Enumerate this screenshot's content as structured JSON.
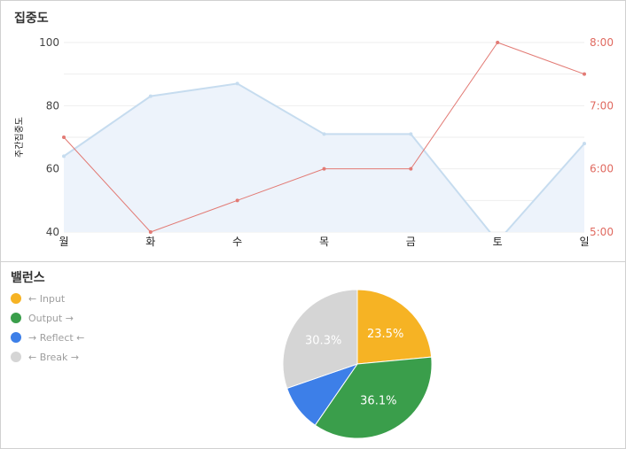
{
  "top_panel": {
    "title": "집중도"
  },
  "bottom_panel": {
    "title": "밸런스"
  },
  "colors": {
    "area_line": "#c6dcef",
    "area_fill": "#edf3fb",
    "time_line": "#e27a74",
    "left_axis_text": "#444444",
    "right_axis_text": "#e06a60",
    "grid": "#eeeeee"
  },
  "chart_data": [
    {
      "type": "area",
      "title": "집중도",
      "ylabel": "주간집중도",
      "y2label": "",
      "categories": [
        "월",
        "화",
        "수",
        "목",
        "금",
        "토",
        "일"
      ],
      "ylim": [
        40,
        100
      ],
      "yticks": [
        "40",
        "60",
        "80",
        "100"
      ],
      "y2lim": [
        5,
        8
      ],
      "y2ticks": [
        "5:00",
        "6:00",
        "7:00",
        "8:00"
      ],
      "grid": true,
      "series": [
        {
          "axis": "left",
          "style": "area",
          "values": [
            64,
            83,
            87,
            71,
            71,
            37,
            68
          ]
        },
        {
          "axis": "right",
          "style": "line",
          "values": [
            6.5,
            5.0,
            5.5,
            6.0,
            6.0,
            8.0,
            7.5
          ]
        }
      ]
    },
    {
      "type": "pie",
      "title": "밸런스",
      "legend_position": "left",
      "slices": [
        {
          "label": "← Input",
          "value": 23.5,
          "text": "23.5%",
          "color": "#f6b324"
        },
        {
          "label": "Output →",
          "value": 36.1,
          "text": "36.1%",
          "color": "#3a9e4b"
        },
        {
          "label": "→ Reflect ←",
          "value": 10.1,
          "text": "",
          "color": "#3d7fe8"
        },
        {
          "label": "← Break →",
          "value": 30.3,
          "text": "30.3%",
          "color": "#d5d5d5"
        }
      ]
    }
  ]
}
